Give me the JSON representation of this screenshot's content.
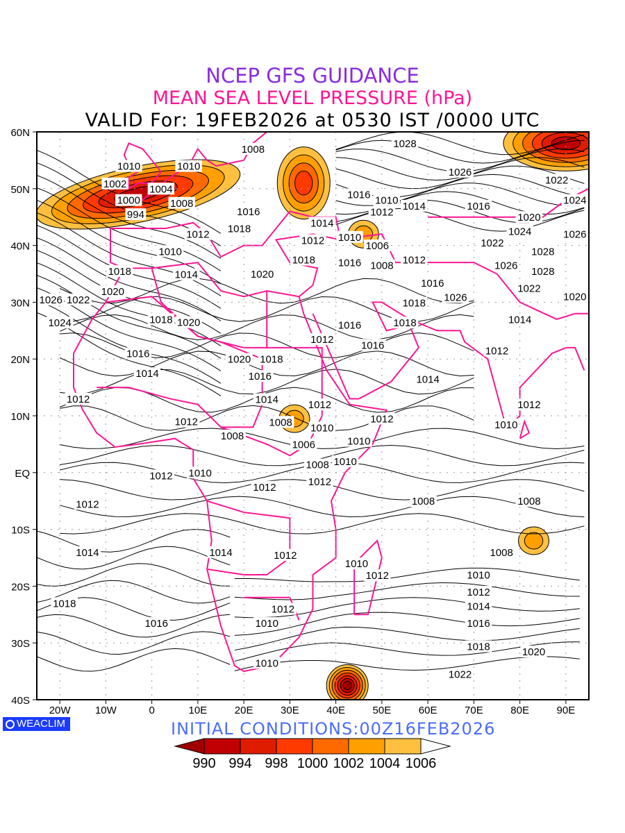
{
  "titles": {
    "line1": "NCEP GFS GUIDANCE",
    "line2": "MEAN SEA LEVEL PRESSURE (hPa)",
    "line3": "VALID For: 19FEB2026 at 0530 IST /0000 UTC"
  },
  "logo": "WEACLIM",
  "initial_conditions": "INITIAL  CONDITIONS:00Z16FEB2026",
  "axes": {
    "lon_range": [
      -25,
      95
    ],
    "lat_range": [
      -40,
      60
    ],
    "x_ticks": [
      {
        "v": -20,
        "l": "20W"
      },
      {
        "v": -10,
        "l": "10W"
      },
      {
        "v": 0,
        "l": "0"
      },
      {
        "v": 10,
        "l": "10E"
      },
      {
        "v": 20,
        "l": "20E"
      },
      {
        "v": 30,
        "l": "30E"
      },
      {
        "v": 40,
        "l": "40E"
      },
      {
        "v": 50,
        "l": "50E"
      },
      {
        "v": 60,
        "l": "60E"
      },
      {
        "v": 70,
        "l": "70E"
      },
      {
        "v": 80,
        "l": "80E"
      },
      {
        "v": 90,
        "l": "90E"
      }
    ],
    "y_ticks": [
      {
        "v": 60,
        "l": "60N"
      },
      {
        "v": 50,
        "l": "50N"
      },
      {
        "v": 40,
        "l": "40N"
      },
      {
        "v": 30,
        "l": "30N"
      },
      {
        "v": 20,
        "l": "20N"
      },
      {
        "v": 10,
        "l": "10N"
      },
      {
        "v": 0,
        "l": "EQ"
      },
      {
        "v": -10,
        "l": "10S"
      },
      {
        "v": -20,
        "l": "20S"
      },
      {
        "v": -30,
        "l": "30S"
      },
      {
        "v": -40,
        "l": "40S"
      }
    ]
  },
  "colorbar": {
    "colors": [
      "#a00000",
      "#c00000",
      "#e01c00",
      "#ff3a00",
      "#ff6a00",
      "#ffa000",
      "#ffc040",
      "#ffffff"
    ],
    "labels": [
      "990",
      "994",
      "998",
      "1000",
      "1002",
      "1004",
      "1006"
    ]
  },
  "lows": [
    {
      "lon": -3,
      "lat": 49,
      "min": 994
    },
    {
      "lon": 33,
      "lat": 51,
      "min": 1000
    },
    {
      "lon": 90,
      "lat": 58,
      "min": 994
    },
    {
      "lon": 31,
      "lat": 9.5,
      "min": 1004
    },
    {
      "lon": 42.5,
      "lat": -37.5,
      "min": 990
    },
    {
      "lon": 83,
      "lat": -12,
      "min": 1004
    },
    {
      "lon": 46,
      "lat": 42,
      "min": 1004
    }
  ],
  "contour_labels": [
    {
      "t": "1010",
      "lon": -5,
      "lat": 54
    },
    {
      "t": "1002",
      "lon": -8,
      "lat": 53
    },
    {
      "t": "994",
      "lon": -3.5,
      "lat": 45.5
    },
    {
      "t": "1004",
      "lon": 2,
      "lat": 50
    },
    {
      "t": "1000",
      "lon": 1,
      "lat": 48
    },
    {
      "t": "1008",
      "lon": 6.5,
      "lat": 47.5
    },
    {
      "t": "1010",
      "lon": 8,
      "lat": 54
    },
    {
      "t": "1008",
      "lon": 22,
      "lat": 57
    },
    {
      "t": "1028",
      "lon": 55,
      "lat": 58
    },
    {
      "t": "1026",
      "lon": 67,
      "lat": 53
    },
    {
      "t": "1016",
      "lon": 45,
      "lat": 49
    },
    {
      "t": "1012",
      "lon": 50,
      "lat": 48
    },
    {
      "t": "1014",
      "lon": 57,
      "lat": 47
    },
    {
      "t": "1010",
      "lon": 45,
      "lat": 48
    },
    {
      "t": "1016",
      "lon": 21,
      "lat": 46
    },
    {
      "t": "1018",
      "lon": 19,
      "lat": 43
    },
    {
      "t": "1012",
      "lon": 10,
      "lat": 42
    },
    {
      "t": "1014",
      "lon": 37,
      "lat": 44
    },
    {
      "t": "1012",
      "lon": 35,
      "lat": 43
    },
    {
      "t": "1010",
      "lon": 43,
      "lat": 41.5
    },
    {
      "t": "1006",
      "lon": 49,
      "lat": 40
    },
    {
      "t": "1010",
      "lon": 4,
      "lat": 39
    },
    {
      "t": "1014",
      "lon": 7.5,
      "lat": 37
    },
    {
      "t": "1018",
      "lon": -7,
      "lat": 35.5
    },
    {
      "t": "1020",
      "lon": -8.5,
      "lat": 34
    },
    {
      "t": "1020",
      "lon": 24,
      "lat": 35
    },
    {
      "t": "1018",
      "lon": 33,
      "lat": 37.5
    },
    {
      "t": "1016",
      "lon": 43,
      "lat": 37
    },
    {
      "t": "1008",
      "lon": 50,
      "lat": 36.5
    },
    {
      "t": "1012",
      "lon": 57,
      "lat": 37.5
    },
    {
      "t": "1016",
      "lon": 61,
      "lat": 35.5
    },
    {
      "t": "1018",
      "lon": 57,
      "lat": 32
    },
    {
      "t": "1018",
      "lon": 55,
      "lat": 28.5
    },
    {
      "t": "1016",
      "lon": 71,
      "lat": 47
    },
    {
      "t": "1020",
      "lon": 82,
      "lat": 45
    },
    {
      "t": "1024",
      "lon": 80,
      "lat": 42.5
    },
    {
      "t": "1022",
      "lon": 74,
      "lat": 40.5
    },
    {
      "t": "1028",
      "lon": 85,
      "lat": 39
    },
    {
      "t": "1026",
      "lon": 77,
      "lat": 36.5
    },
    {
      "t": "1028",
      "lon": 85,
      "lat": 35.5
    },
    {
      "t": "1022",
      "lon": 82,
      "lat": 32.5
    },
    {
      "t": "1020",
      "lon": 93,
      "lat": 31
    },
    {
      "t": "1026",
      "lon": 66,
      "lat": 33
    },
    {
      "t": "1024",
      "lon": 92,
      "lat": 48
    },
    {
      "t": "1022",
      "lon": 88,
      "lat": 49.5
    },
    {
      "t": "1026",
      "lon": 93,
      "lat": 42
    },
    {
      "t": "1022",
      "lon": -16,
      "lat": 30.5
    },
    {
      "t": "1024",
      "lon": -20,
      "lat": 28.5
    },
    {
      "t": "1026",
      "lon": -23,
      "lat": 30.5
    },
    {
      "t": "1018",
      "lon": 2,
      "lat": 27
    },
    {
      "t": "1020",
      "lon": 8,
      "lat": 26.5
    },
    {
      "t": "1016",
      "lon": -3,
      "lat": 21
    },
    {
      "t": "1014",
      "lon": -1,
      "lat": 17.5
    },
    {
      "t": "1012",
      "lon": -16,
      "lat": 13
    },
    {
      "t": "1012",
      "lon": 7.5,
      "lat": 9
    },
    {
      "t": "1008",
      "lon": 17.5,
      "lat": 6.5
    },
    {
      "t": "1020",
      "lon": 19,
      "lat": 20
    },
    {
      "t": "1018",
      "lon": 26,
      "lat": 20
    },
    {
      "t": "1016",
      "lon": 23.5,
      "lat": 17
    },
    {
      "t": "1014",
      "lon": 25,
      "lat": 15
    },
    {
      "t": "1012",
      "lon": 37,
      "lat": 23.5
    },
    {
      "t": "1016",
      "lon": 43,
      "lat": 26
    },
    {
      "t": "1016",
      "lon": 48,
      "lat": 22.5
    },
    {
      "t": "1014",
      "lon": 60,
      "lat": 16.5
    },
    {
      "t": "1012",
      "lon": 75,
      "lat": 21.5
    },
    {
      "t": "1014",
      "lon": 80,
      "lat": 27
    },
    {
      "t": "1012",
      "lon": 82,
      "lat": 12
    },
    {
      "t": "1010",
      "lon": 77,
      "lat": 8.5
    },
    {
      "t": "1008",
      "lon": 28,
      "lat": 11
    },
    {
      "t": "1012",
      "lon": 36.5,
      "lat": 12
    },
    {
      "t": "1010",
      "lon": 37,
      "lat": 10
    },
    {
      "t": "1012",
      "lon": 50,
      "lat": 9.5
    },
    {
      "t": "1006",
      "lon": 33,
      "lat": 5
    },
    {
      "t": "1008",
      "lon": 36,
      "lat": 3.5
    },
    {
      "t": "1010",
      "lon": 36,
      "lat": 2
    },
    {
      "t": "1010",
      "lon": 45,
      "lat": 3.5
    },
    {
      "t": "1012",
      "lon": 2,
      "lat": -0.5
    },
    {
      "t": "1010",
      "lon": 10.5,
      "lat": 0
    },
    {
      "t": "1012",
      "lon": 24.5,
      "lat": -2.5
    },
    {
      "t": "1012",
      "lon": 36.5,
      "lat": 0.5
    },
    {
      "t": "1012",
      "lon": -14,
      "lat": -5.5
    },
    {
      "t": "1008",
      "lon": 59,
      "lat": -5
    },
    {
      "t": "1008",
      "lon": 82,
      "lat": -5
    },
    {
      "t": "1008",
      "lon": 76,
      "lat": -14
    },
    {
      "t": "1014",
      "lon": -14,
      "lat": -14
    },
    {
      "t": "1014",
      "lon": 15,
      "lat": -14
    },
    {
      "t": "1012",
      "lon": 29,
      "lat": -14.5
    },
    {
      "t": "1010",
      "lon": 44.5,
      "lat": -16
    },
    {
      "t": "1012",
      "lon": 49,
      "lat": -16
    },
    {
      "t": "1010",
      "lon": 71,
      "lat": -18
    },
    {
      "t": "1012",
      "lon": 71,
      "lat": -21
    },
    {
      "t": "1014",
      "lon": 71,
      "lat": -23.5
    },
    {
      "t": "1016",
      "lon": 71,
      "lat": -26.5
    },
    {
      "t": "1018",
      "lon": 71,
      "lat": -28.5
    },
    {
      "t": "1020",
      "lon": 83,
      "lat": -31.5
    },
    {
      "t": "1022",
      "lon": 67,
      "lat": -35.5
    },
    {
      "t": "1018",
      "lon": -19,
      "lat": -23
    },
    {
      "t": "1016",
      "lon": 1,
      "lat": -26.5
    },
    {
      "t": "1012",
      "lon": 28.5,
      "lat": -24
    },
    {
      "t": "1010",
      "lon": 25,
      "lat": -26.5
    },
    {
      "t": "1010",
      "lon": 25,
      "lat": -33.5
    }
  ]
}
